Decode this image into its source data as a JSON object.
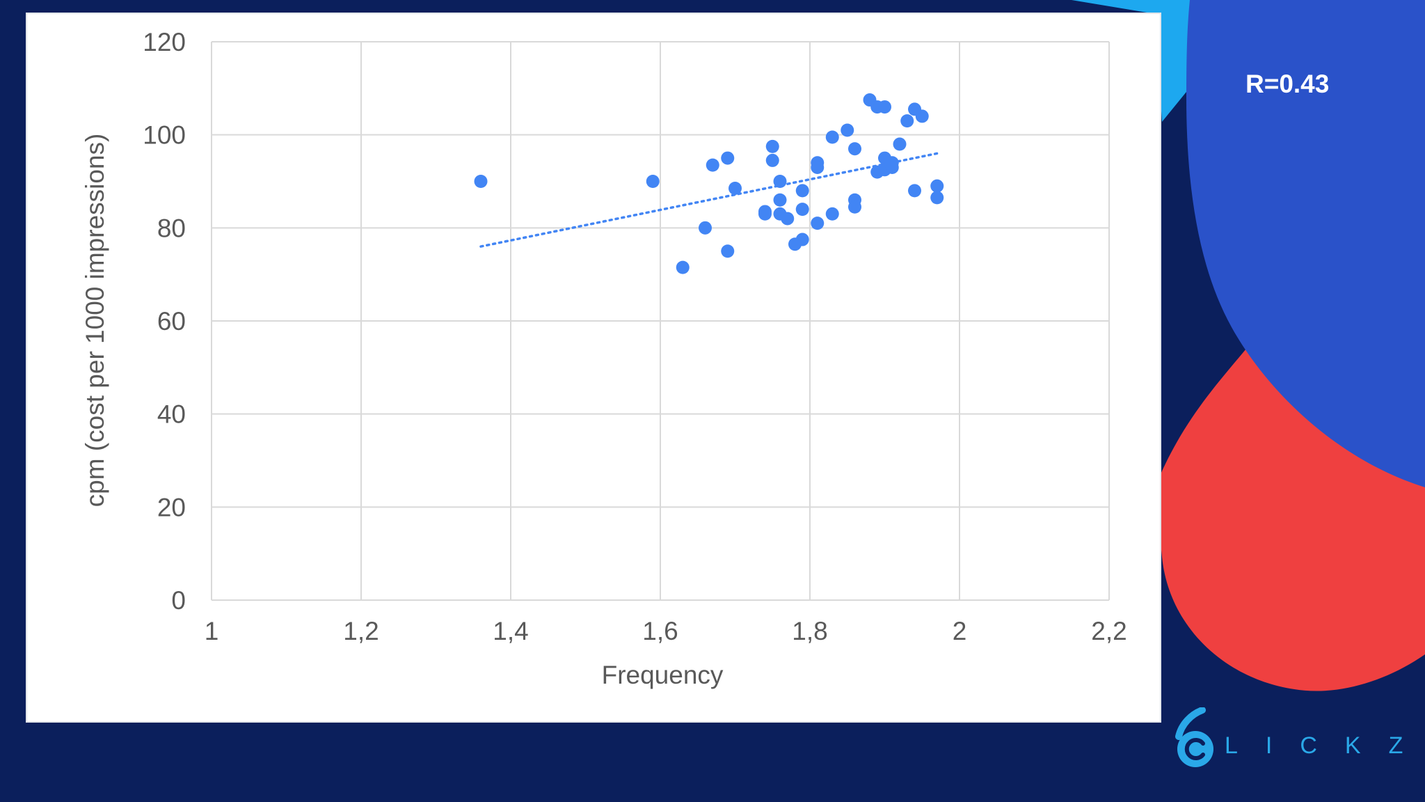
{
  "annotation": {
    "correlation_label": "R=0.43"
  },
  "brand": {
    "logo_text": "LICKZ",
    "logo_mark": "6C"
  },
  "colors": {
    "background": "#0b1f5c",
    "accent_blue": "#2a52c9",
    "accent_red": "#ef4040",
    "accent_cyan": "#1da8ef",
    "point": "#4285f4",
    "logo": "#2aa8e8"
  },
  "chart_data": {
    "type": "scatter",
    "title": "",
    "xlabel": "Frequency",
    "ylabel": "cpm (cost per 1000 impressions)",
    "xlim": [
      1,
      2.2
    ],
    "ylim": [
      0,
      120
    ],
    "x_ticks": [
      "1",
      "1,2",
      "1,4",
      "1,6",
      "1,8",
      "2",
      "2,2"
    ],
    "y_ticks": [
      "0",
      "20",
      "40",
      "60",
      "80",
      "100",
      "120"
    ],
    "grid": true,
    "legend": "none",
    "trendline": {
      "style": "dotted",
      "from": [
        1.36,
        76
      ],
      "to": [
        1.97,
        96
      ]
    },
    "series": [
      {
        "points": [
          [
            1.36,
            90
          ],
          [
            1.59,
            90
          ],
          [
            1.63,
            71.5
          ],
          [
            1.66,
            80
          ],
          [
            1.67,
            93.5
          ],
          [
            1.69,
            95
          ],
          [
            1.69,
            75
          ],
          [
            1.7,
            88.5
          ],
          [
            1.74,
            83.5
          ],
          [
            1.74,
            83
          ],
          [
            1.75,
            97.5
          ],
          [
            1.75,
            94.5
          ],
          [
            1.76,
            90
          ],
          [
            1.76,
            86
          ],
          [
            1.76,
            83
          ],
          [
            1.77,
            82
          ],
          [
            1.78,
            76.5
          ],
          [
            1.79,
            77.5
          ],
          [
            1.79,
            88
          ],
          [
            1.79,
            84
          ],
          [
            1.81,
            94
          ],
          [
            1.81,
            93
          ],
          [
            1.81,
            81
          ],
          [
            1.83,
            99.5
          ],
          [
            1.83,
            83
          ],
          [
            1.85,
            101
          ],
          [
            1.86,
            97
          ],
          [
            1.86,
            86
          ],
          [
            1.86,
            84.5
          ],
          [
            1.88,
            107.5
          ],
          [
            1.89,
            106
          ],
          [
            1.89,
            92
          ],
          [
            1.9,
            106
          ],
          [
            1.9,
            95
          ],
          [
            1.9,
            92.5
          ],
          [
            1.91,
            94
          ],
          [
            1.91,
            93
          ],
          [
            1.92,
            98
          ],
          [
            1.93,
            103
          ],
          [
            1.94,
            105.5
          ],
          [
            1.94,
            88
          ],
          [
            1.95,
            104
          ],
          [
            1.97,
            89
          ],
          [
            1.97,
            86.5
          ]
        ]
      }
    ]
  }
}
